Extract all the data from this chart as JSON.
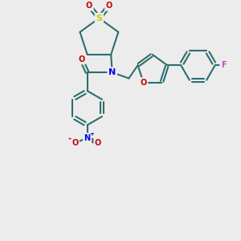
{
  "bg_color": "#ececec",
  "line_color": "#2d6e6e",
  "bond_width": 1.5,
  "figsize": [
    3.0,
    3.0
  ],
  "dpi": 100,
  "atom_colors": {
    "N": "#0000ee",
    "O": "#cc0000",
    "S": "#cccc00",
    "F": "#cc44cc",
    "C": "#2d6e6e"
  },
  "scale": 1.0
}
